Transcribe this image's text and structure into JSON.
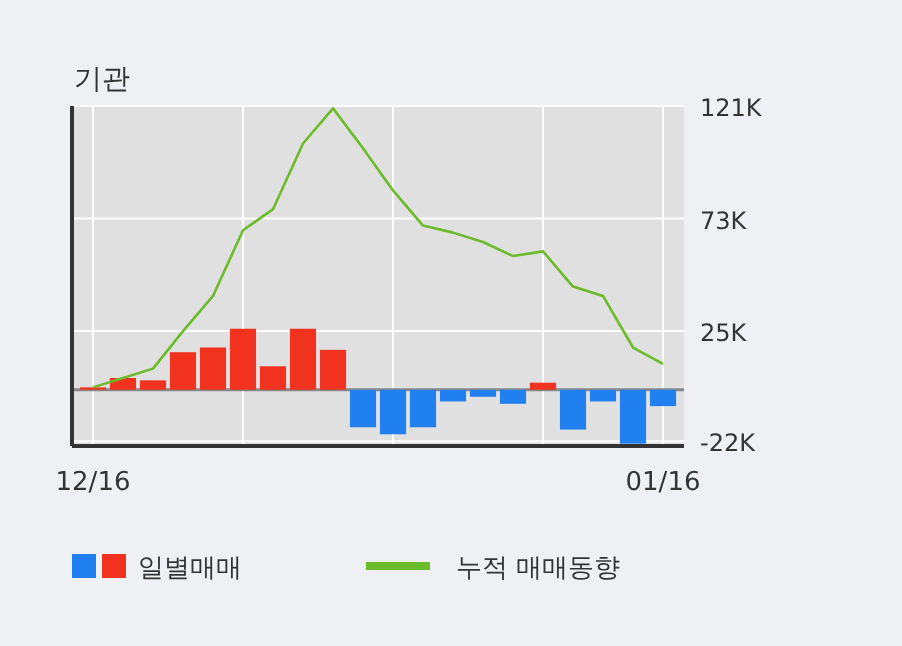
{
  "chart_data": {
    "type": "bar",
    "title": "기관",
    "categories": [
      "12/16",
      null,
      null,
      null,
      null,
      null,
      null,
      null,
      null,
      null,
      null,
      null,
      null,
      null,
      null,
      null,
      null,
      null,
      null,
      "01/16"
    ],
    "series": [
      {
        "name": "일별매매",
        "colors": [
          "#f0321e",
          "#f0321e",
          "#f0321e",
          "#f0321e",
          "#f0321e",
          "#f0321e",
          "#f0321e",
          "#f0321e",
          "#f0321e",
          "#2080f0",
          "#2080f0",
          "#2080f0",
          "#2080f0",
          "#2080f0",
          "#2080f0",
          "#f0321e",
          "#2080f0",
          "#2080f0",
          "#2080f0",
          "#2080f0"
        ],
        "values": [
          1000,
          5000,
          4000,
          16000,
          18000,
          26000,
          10000,
          26000,
          17000,
          -16000,
          -19000,
          -16000,
          -5000,
          -3000,
          -6000,
          3000,
          -17000,
          -5000,
          -23000,
          -7000
        ]
      },
      {
        "name": "누적 매매동향",
        "type": "line",
        "color": "#6cbb2a",
        "values": [
          1000,
          5000,
          9000,
          25000,
          40000,
          68000,
          77000,
          105000,
          120000,
          103000,
          85000,
          70000,
          67000,
          63000,
          57000,
          59000,
          44000,
          40000,
          18000,
          11000
        ]
      }
    ],
    "ylim": [
      -24000,
      121000
    ],
    "yticks": [
      {
        "value": -22000,
        "label": "-22K"
      },
      {
        "value": 25000,
        "label": "25K"
      },
      {
        "value": 73000,
        "label": "73K"
      },
      {
        "value": 121000,
        "label": "121K"
      }
    ],
    "grid": true,
    "legend": "bottom"
  }
}
